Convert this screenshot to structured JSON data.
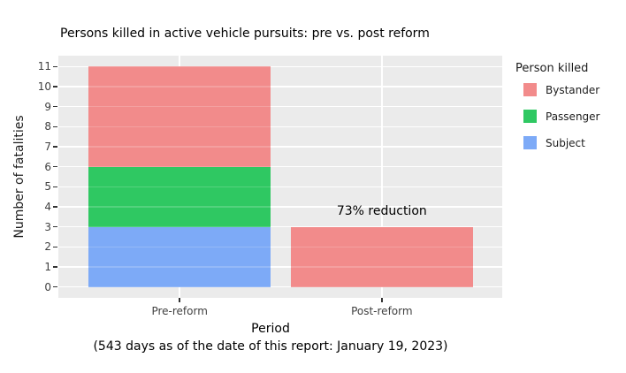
{
  "title": "Persons killed in active vehicle pursuits: pre vs. post reform",
  "chart_data": {
    "type": "bar",
    "stacked": true,
    "categories": [
      "Pre-reform",
      "Post-reform"
    ],
    "series": [
      {
        "name": "Subject",
        "color": "#7DAAF7",
        "values": [
          3,
          0
        ]
      },
      {
        "name": "Passenger",
        "color": "#2FC862",
        "values": [
          3,
          0
        ]
      },
      {
        "name": "Bystander",
        "color": "#F28B8B",
        "values": [
          5,
          3
        ]
      }
    ],
    "totals": [
      11,
      3
    ],
    "title": "Persons killed in active vehicle pursuits: pre vs. post reform",
    "xlabel": "Period",
    "xlabel_note": "(543 days as of the date of this report: January 19, 2023)",
    "ylabel": "Number of fatalities",
    "ylim": [
      0,
      11
    ],
    "yticks": [
      0,
      1,
      2,
      3,
      4,
      5,
      6,
      7,
      8,
      9,
      10,
      11
    ],
    "grid": true,
    "panel_bg": "#EBEBEB",
    "grid_color": "#FFFFFF",
    "legend_position": "right",
    "annotation": {
      "text": "73% reduction",
      "category_index": 1,
      "y": 3.75
    }
  },
  "legend": {
    "title": "Person killed",
    "entries": [
      {
        "label": "Bystander",
        "color": "#F28B8B"
      },
      {
        "label": "Passenger",
        "color": "#2FC862"
      },
      {
        "label": "Subject",
        "color": "#7DAAF7"
      }
    ]
  }
}
